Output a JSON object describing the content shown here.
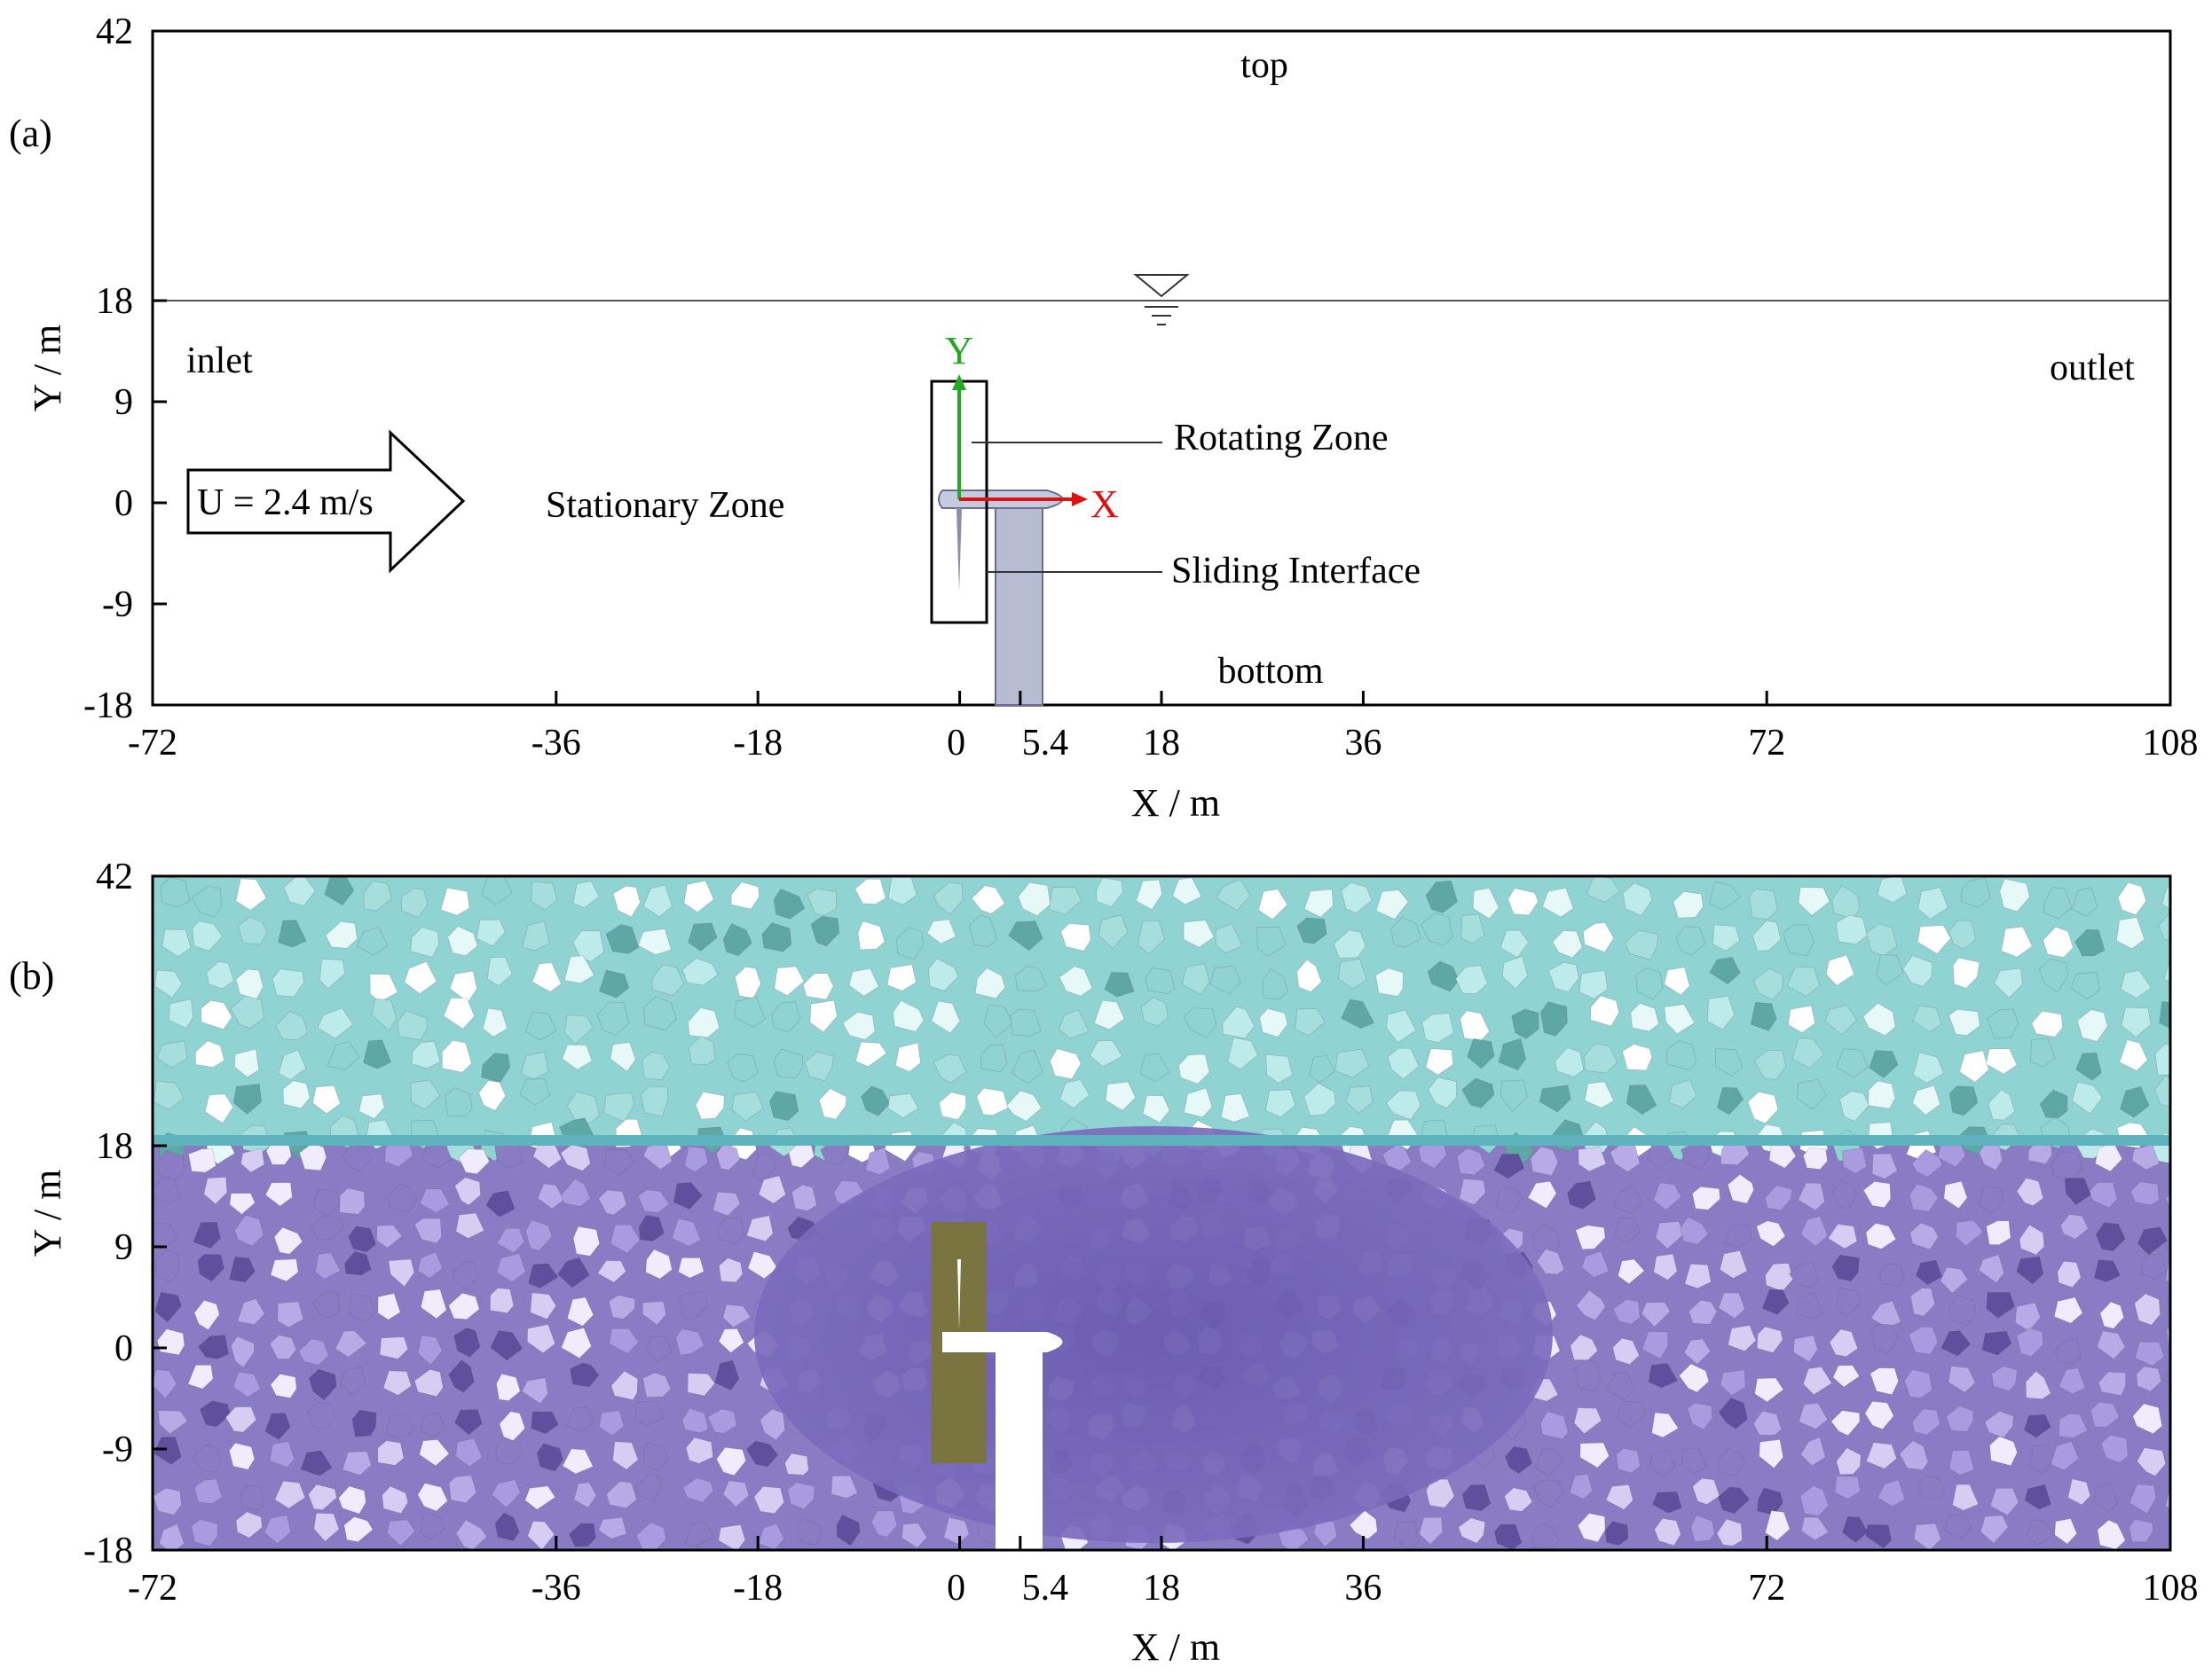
{
  "panels": [
    {
      "label": "(a)",
      "x_axis_label": "X / m",
      "y_axis_label": "Y / m",
      "x_ticks": [
        -72,
        -36,
        -18,
        0,
        5.4,
        18,
        36,
        72,
        108
      ],
      "y_ticks": [
        42,
        18,
        9,
        0,
        -9,
        -18
      ],
      "x_range": [
        -72,
        108
      ],
      "y_range": [
        -18,
        42
      ],
      "boundaries": {
        "top": "top",
        "bottom": "bottom",
        "inlet": "inlet",
        "outlet": "outlet"
      },
      "water_level_y": 18,
      "inflow_label": "U = 2.4 m/s",
      "stationary_zone_label": "Stationary Zone",
      "rotating_zone_label": "Rotating Zone",
      "sliding_interface_label": "Sliding Interface",
      "coord_x_label": "X",
      "coord_y_label": "Y",
      "rotating_zone_box": {
        "x_min": -2.5,
        "x_max": 2.5,
        "y_min": -11,
        "y_max": 10.5
      },
      "tower": {
        "x_min": 3.3,
        "x_max": 7.5,
        "y_min": -18,
        "y_max": 0
      },
      "nacelle": {
        "x_min": -1.5,
        "x_max": 9,
        "y_center": 0
      }
    },
    {
      "label": "(b)",
      "x_axis_label": "X / m",
      "y_axis_label": "Y / m",
      "x_ticks": [
        -72,
        -36,
        -18,
        0,
        5.4,
        18,
        36,
        72,
        108
      ],
      "y_ticks": [
        42,
        18,
        9,
        0,
        -9,
        -18
      ],
      "x_range": [
        -72,
        108
      ],
      "y_range": [
        -18,
        42
      ],
      "air_mesh_color": "#8fd3d3",
      "water_mesh_color": "#8a7cc4",
      "rotating_zone_color": "#7a7440",
      "fine_mesh_color": "#6e5fb3"
    }
  ],
  "colors": {
    "axis": "#000000",
    "coord_x": "#dd1111",
    "coord_y": "#22aa22",
    "tower": "#b8bcd2"
  }
}
